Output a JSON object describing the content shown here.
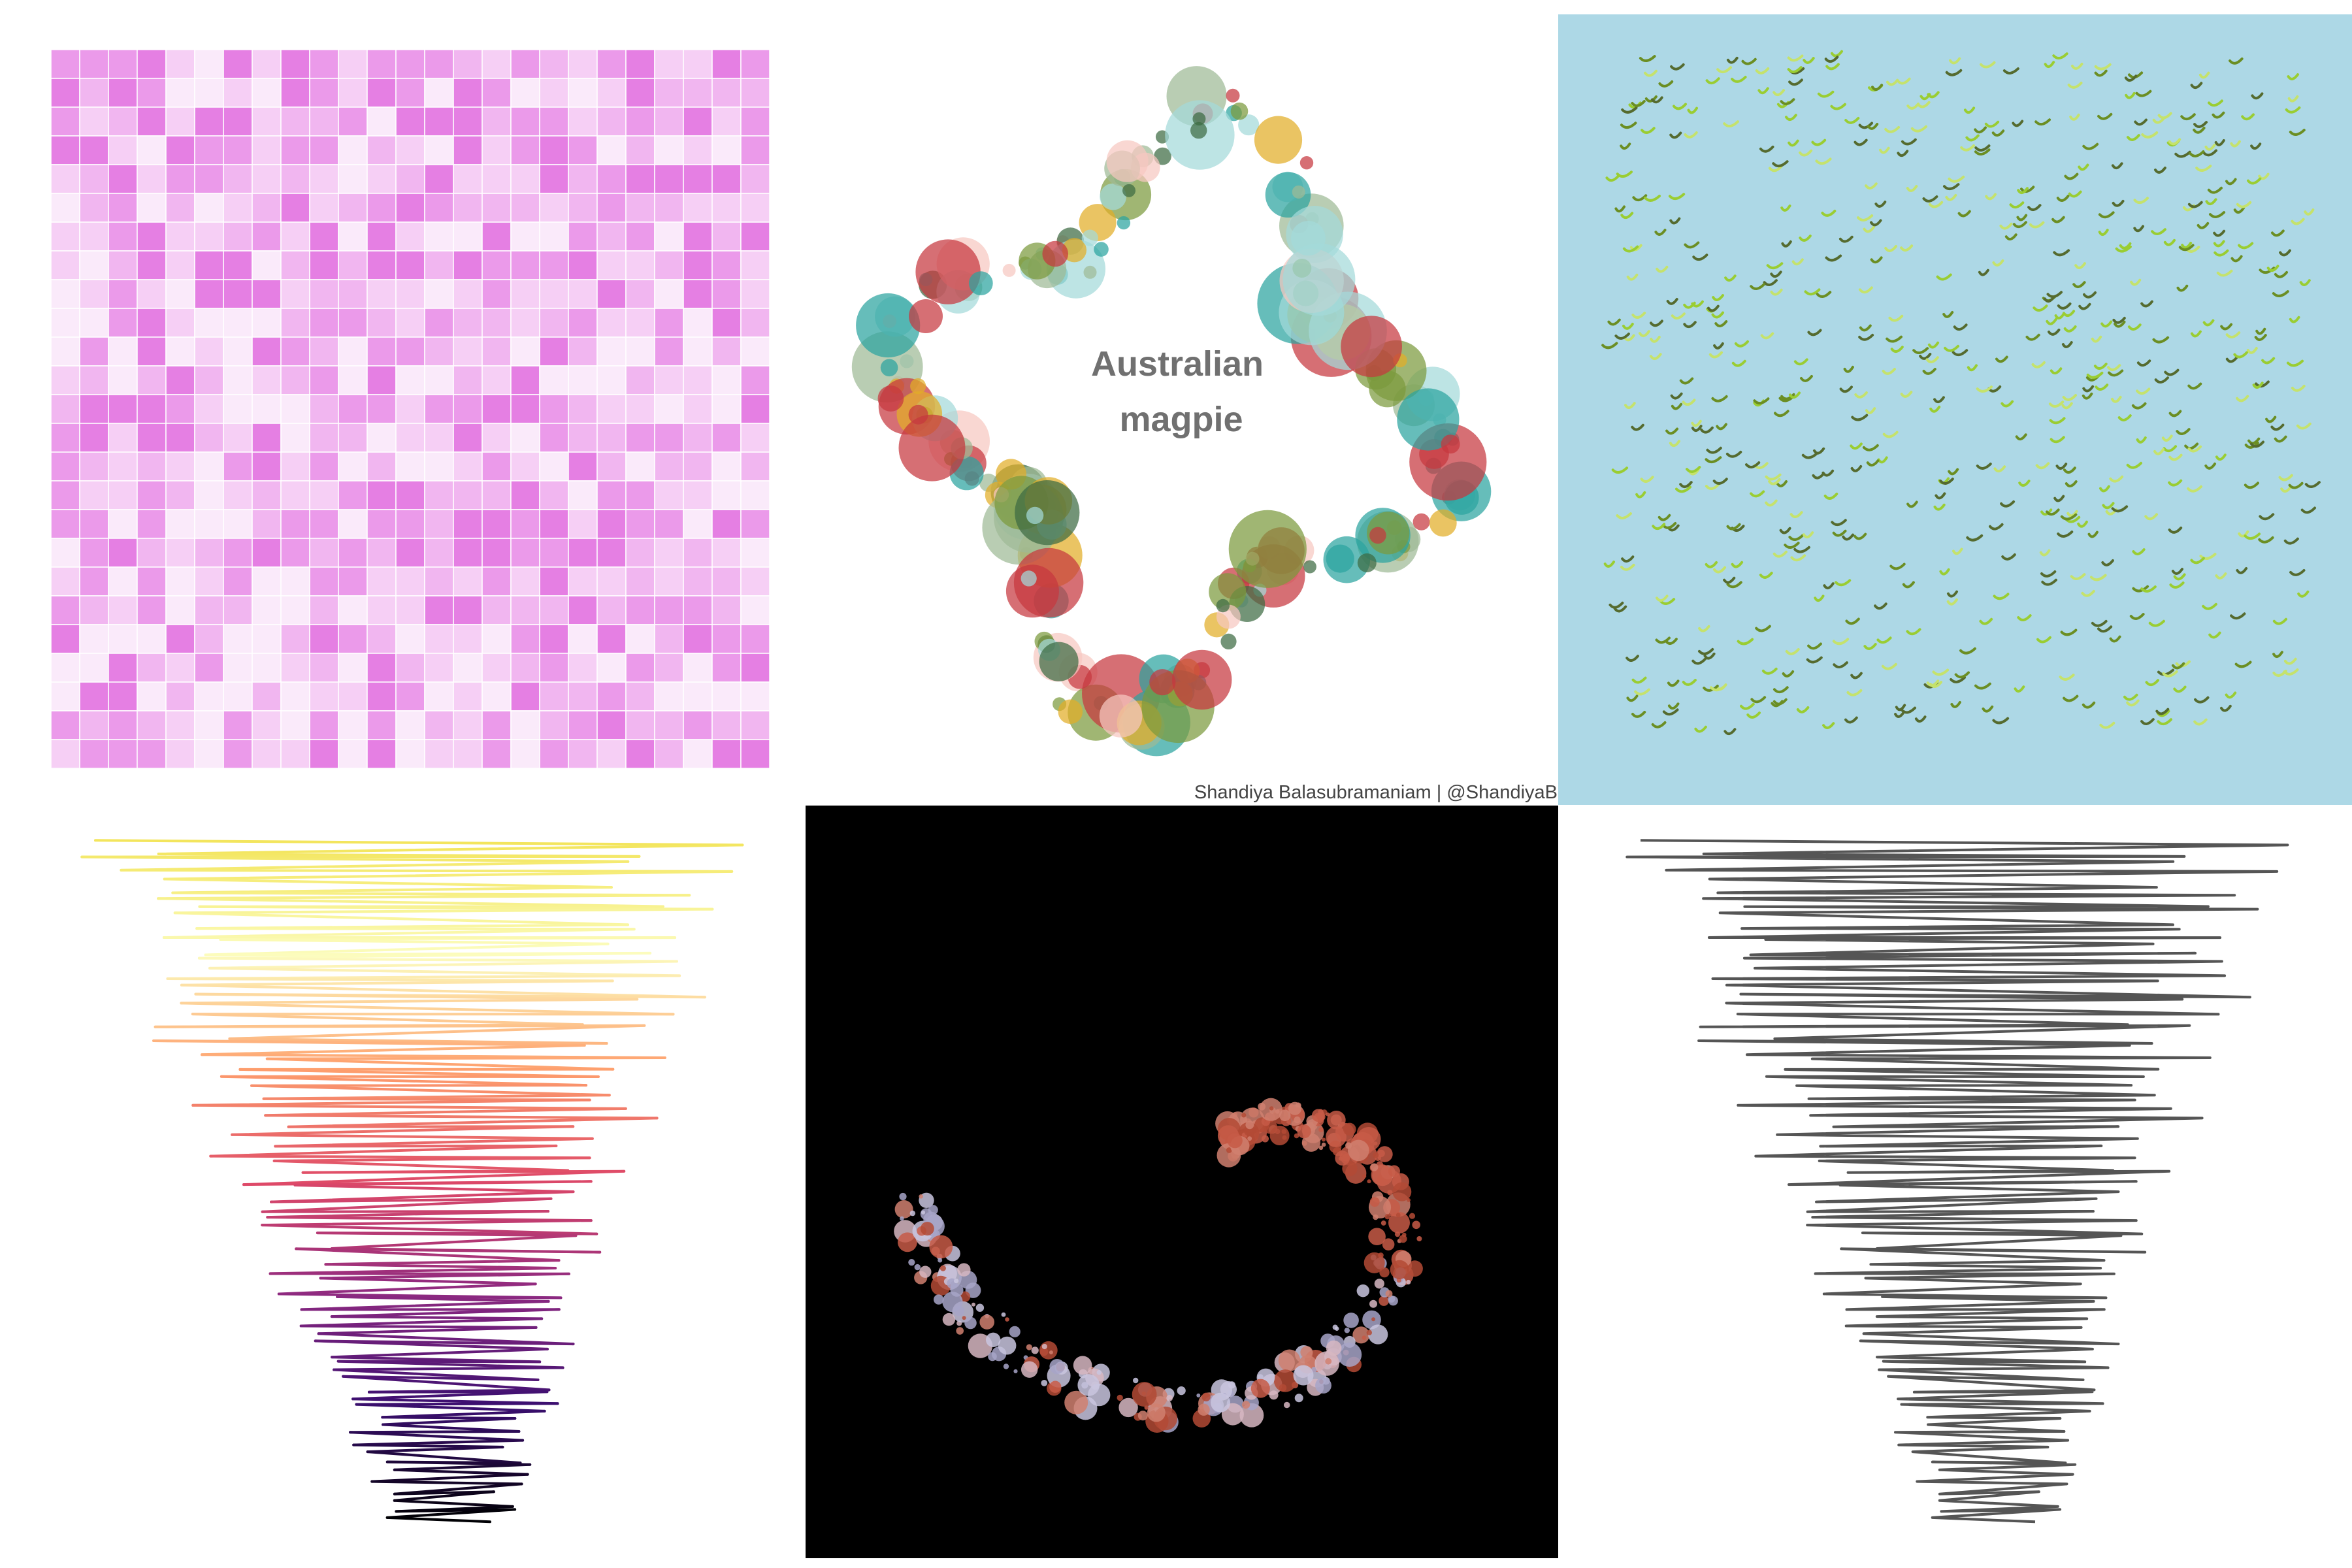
{
  "credit": "Shandiya Balasubramaniam | @ShandiyaB",
  "panels": {
    "tiles": {
      "grid": 25,
      "seed": 11,
      "colors": [
        "#e57fe3",
        "#eb9aea",
        "#f1b6f0",
        "#f6cff5",
        "#faeafa"
      ]
    },
    "bubbles": {
      "title_line1": "Australian",
      "title_line2": "magpie",
      "seed": 23,
      "count": 200,
      "colors": [
        "#c6383e",
        "#e2ad27",
        "#7b9a3d",
        "#3d6b43",
        "#9eba95",
        "#2ba3a0",
        "#a4dada",
        "#f6c8c0"
      ]
    },
    "swooshes": {
      "background": "#add8e6",
      "seed": 37,
      "count": 620,
      "colors": [
        "#6b8e23",
        "#9acd32",
        "#c5e26c",
        "#556b2f"
      ]
    },
    "tornado_color": {
      "seed": 5,
      "vertices": 150,
      "palette": [
        "#000004",
        "#3b0f70",
        "#8c2981",
        "#de4968",
        "#fe9f6d",
        "#fcfdbf",
        "#f3e55d"
      ]
    },
    "galaxy": {
      "background": "#000000",
      "seed": 41,
      "count": 360,
      "colors": [
        "#b34a35",
        "#c75b47",
        "#d08070",
        "#c9c6df",
        "#a7a5c8",
        "#d7b7c2"
      ]
    },
    "tornado_grey": {
      "color": "#555555"
    }
  }
}
